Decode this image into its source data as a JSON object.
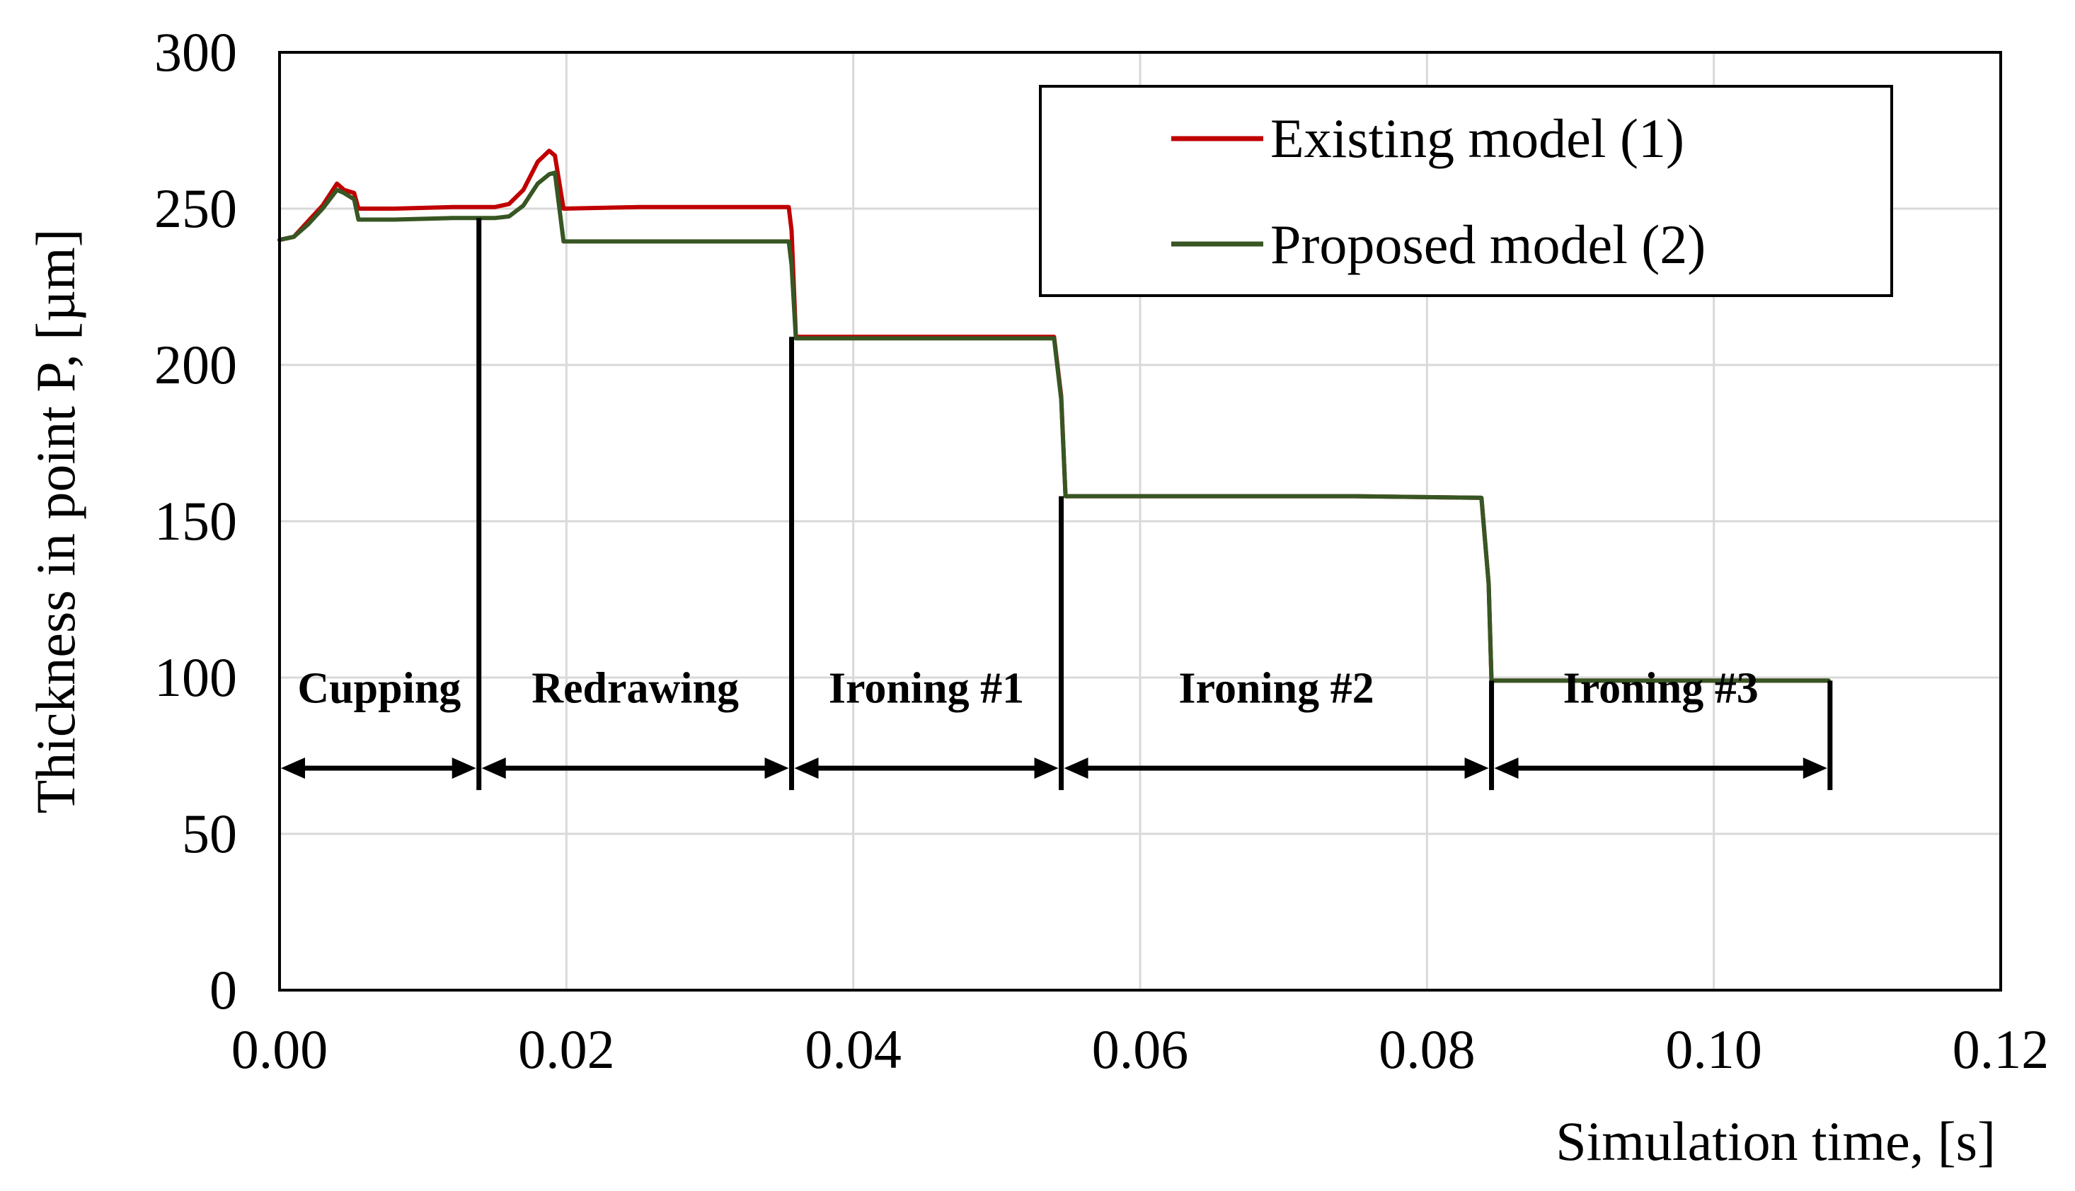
{
  "chart_data": {
    "type": "line",
    "title": "",
    "xlabel": "Simulation time, [s]",
    "ylabel": "Thickness in point P, [µm]",
    "xlim": [
      0,
      0.12
    ],
    "ylim": [
      0,
      300
    ],
    "x_ticks": [
      {
        "value": 0.0,
        "label": "0.00"
      },
      {
        "value": 0.02,
        "label": "0.02"
      },
      {
        "value": 0.04,
        "label": "0.04"
      },
      {
        "value": 0.06,
        "label": "0.06"
      },
      {
        "value": 0.08,
        "label": "0.08"
      },
      {
        "value": 0.1,
        "label": "0.10"
      },
      {
        "value": 0.12,
        "label": "0.12"
      }
    ],
    "y_ticks": [
      {
        "value": 0,
        "label": "0"
      },
      {
        "value": 50,
        "label": "50"
      },
      {
        "value": 100,
        "label": "100"
      },
      {
        "value": 150,
        "label": "150"
      },
      {
        "value": 200,
        "label": "200"
      },
      {
        "value": 250,
        "label": "250"
      },
      {
        "value": 300,
        "label": "300"
      }
    ],
    "grid": true,
    "legend_position": "top-right",
    "series": [
      {
        "name": "Existing model (1)",
        "color": "#c00000",
        "points": [
          [
            0.0,
            240
          ],
          [
            0.001,
            241
          ],
          [
            0.002,
            246
          ],
          [
            0.003,
            251
          ],
          [
            0.004,
            258
          ],
          [
            0.0045,
            256
          ],
          [
            0.0052,
            255
          ],
          [
            0.0055,
            250
          ],
          [
            0.008,
            250
          ],
          [
            0.012,
            250.5
          ],
          [
            0.015,
            250.5
          ],
          [
            0.016,
            251.5
          ],
          [
            0.017,
            256
          ],
          [
            0.018,
            265
          ],
          [
            0.0188,
            268.5
          ],
          [
            0.0192,
            267
          ],
          [
            0.0198,
            250
          ],
          [
            0.025,
            250.5
          ],
          [
            0.03,
            250.5
          ],
          [
            0.0355,
            250.5
          ],
          [
            0.0357,
            243
          ],
          [
            0.036,
            209
          ],
          [
            0.045,
            209
          ],
          [
            0.054,
            209
          ],
          [
            0.0545,
            190
          ],
          [
            0.0548,
            158
          ],
          [
            0.065,
            158
          ],
          [
            0.075,
            158
          ],
          [
            0.0838,
            157.5
          ],
          [
            0.0843,
            130
          ],
          [
            0.0845,
            99
          ],
          [
            0.095,
            99
          ],
          [
            0.1075,
            99
          ],
          [
            0.108,
            99
          ]
        ]
      },
      {
        "name": "Proposed model (2)",
        "color": "#375623",
        "points": [
          [
            0.0,
            240
          ],
          [
            0.001,
            241
          ],
          [
            0.002,
            245
          ],
          [
            0.003,
            250
          ],
          [
            0.004,
            256
          ],
          [
            0.0045,
            255
          ],
          [
            0.0052,
            253
          ],
          [
            0.0055,
            246.5
          ],
          [
            0.008,
            246.5
          ],
          [
            0.012,
            247
          ],
          [
            0.015,
            247
          ],
          [
            0.016,
            247.5
          ],
          [
            0.017,
            251
          ],
          [
            0.018,
            258
          ],
          [
            0.0188,
            261
          ],
          [
            0.0192,
            261.5
          ],
          [
            0.0198,
            239.5
          ],
          [
            0.025,
            239.5
          ],
          [
            0.03,
            239.5
          ],
          [
            0.0355,
            239.5
          ],
          [
            0.0357,
            232
          ],
          [
            0.036,
            208.5
          ],
          [
            0.045,
            208.5
          ],
          [
            0.054,
            208.5
          ],
          [
            0.0545,
            189
          ],
          [
            0.0548,
            158
          ],
          [
            0.065,
            158
          ],
          [
            0.075,
            158
          ],
          [
            0.0838,
            157.5
          ],
          [
            0.0843,
            130
          ],
          [
            0.0845,
            99
          ],
          [
            0.095,
            99
          ],
          [
            0.1075,
            99
          ],
          [
            0.108,
            99
          ]
        ]
      }
    ],
    "phases": [
      {
        "label": "Cupping",
        "start": 0.0,
        "end": 0.0139
      },
      {
        "label": "Redrawing",
        "start": 0.0139,
        "end": 0.0357
      },
      {
        "label": "Ironing #1",
        "start": 0.0357,
        "end": 0.0545
      },
      {
        "label": "Ironing #2",
        "start": 0.0545,
        "end": 0.0845
      },
      {
        "label": "Ironing #3",
        "start": 0.0845,
        "end": 0.1081
      }
    ],
    "phase_boundary_tops": [
      {
        "x": 0.0139,
        "y": 247
      },
      {
        "x": 0.0357,
        "y": 209
      },
      {
        "x": 0.0545,
        "y": 158
      },
      {
        "x": 0.0845,
        "y": 99
      },
      {
        "x": 0.1081,
        "y": 99
      }
    ],
    "phase_arrow_y": 71
  }
}
